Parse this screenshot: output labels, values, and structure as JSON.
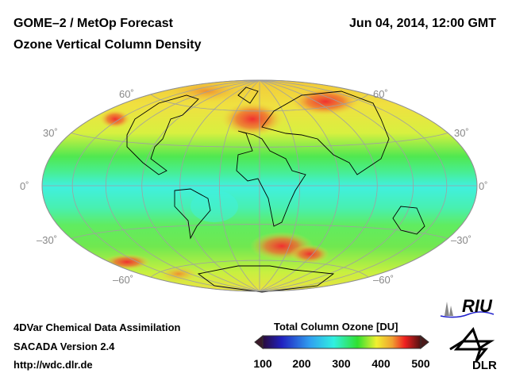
{
  "header": {
    "title": "GOME–2 / MetOp Forecast",
    "subtitle": "Ozone Vertical Column Density",
    "datetime": "Jun 04, 2014, 12:00 GMT"
  },
  "map": {
    "projection": "Hammer-Aitoff",
    "lat_labels_left": [
      "60˚",
      "30˚",
      "0˚",
      "–30˚",
      "–60˚"
    ],
    "lat_labels_right": [
      "60˚",
      "30˚",
      "0˚",
      "–30˚",
      "–60˚"
    ]
  },
  "footer": {
    "line1": "4DVar Chemical Data Assimilation",
    "line2": "SACADA Version 2.4",
    "url": "http://wdc.dlr.de"
  },
  "colorbar": {
    "title": "Total Column Ozone [DU]",
    "ticks": [
      "100",
      "200",
      "300",
      "400",
      "500"
    ],
    "range": [
      100,
      500
    ],
    "colors": [
      "#2a0a3a",
      "#2020c0",
      "#30a0f0",
      "#30f0e0",
      "#30e030",
      "#f0f030",
      "#f0a030",
      "#f02020",
      "#501010"
    ]
  },
  "logos": {
    "riu": "RIU",
    "dlr": "DLR"
  }
}
